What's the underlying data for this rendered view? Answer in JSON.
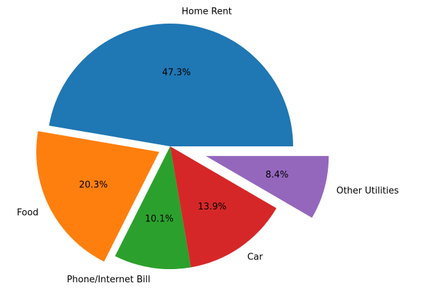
{
  "chart_data": {
    "type": "pie",
    "title": "",
    "categories": [
      "Home Rent",
      "Food",
      "Phone/Internet Bill",
      "Car",
      "Other Utilities"
    ],
    "values": [
      47.3,
      20.3,
      10.1,
      13.9,
      8.4
    ],
    "value_labels": [
      "47.3%",
      "20.3%",
      "10.1%",
      "13.9%",
      "8.4%"
    ],
    "colors": [
      "#1f77b4",
      "#ff7f0e",
      "#2ca02c",
      "#d62728",
      "#9467bd"
    ],
    "explode": [
      0,
      0.1,
      0,
      0,
      0.3
    ],
    "start_angle_deg": 0,
    "direction": "counterclockwise",
    "legend": "none"
  }
}
